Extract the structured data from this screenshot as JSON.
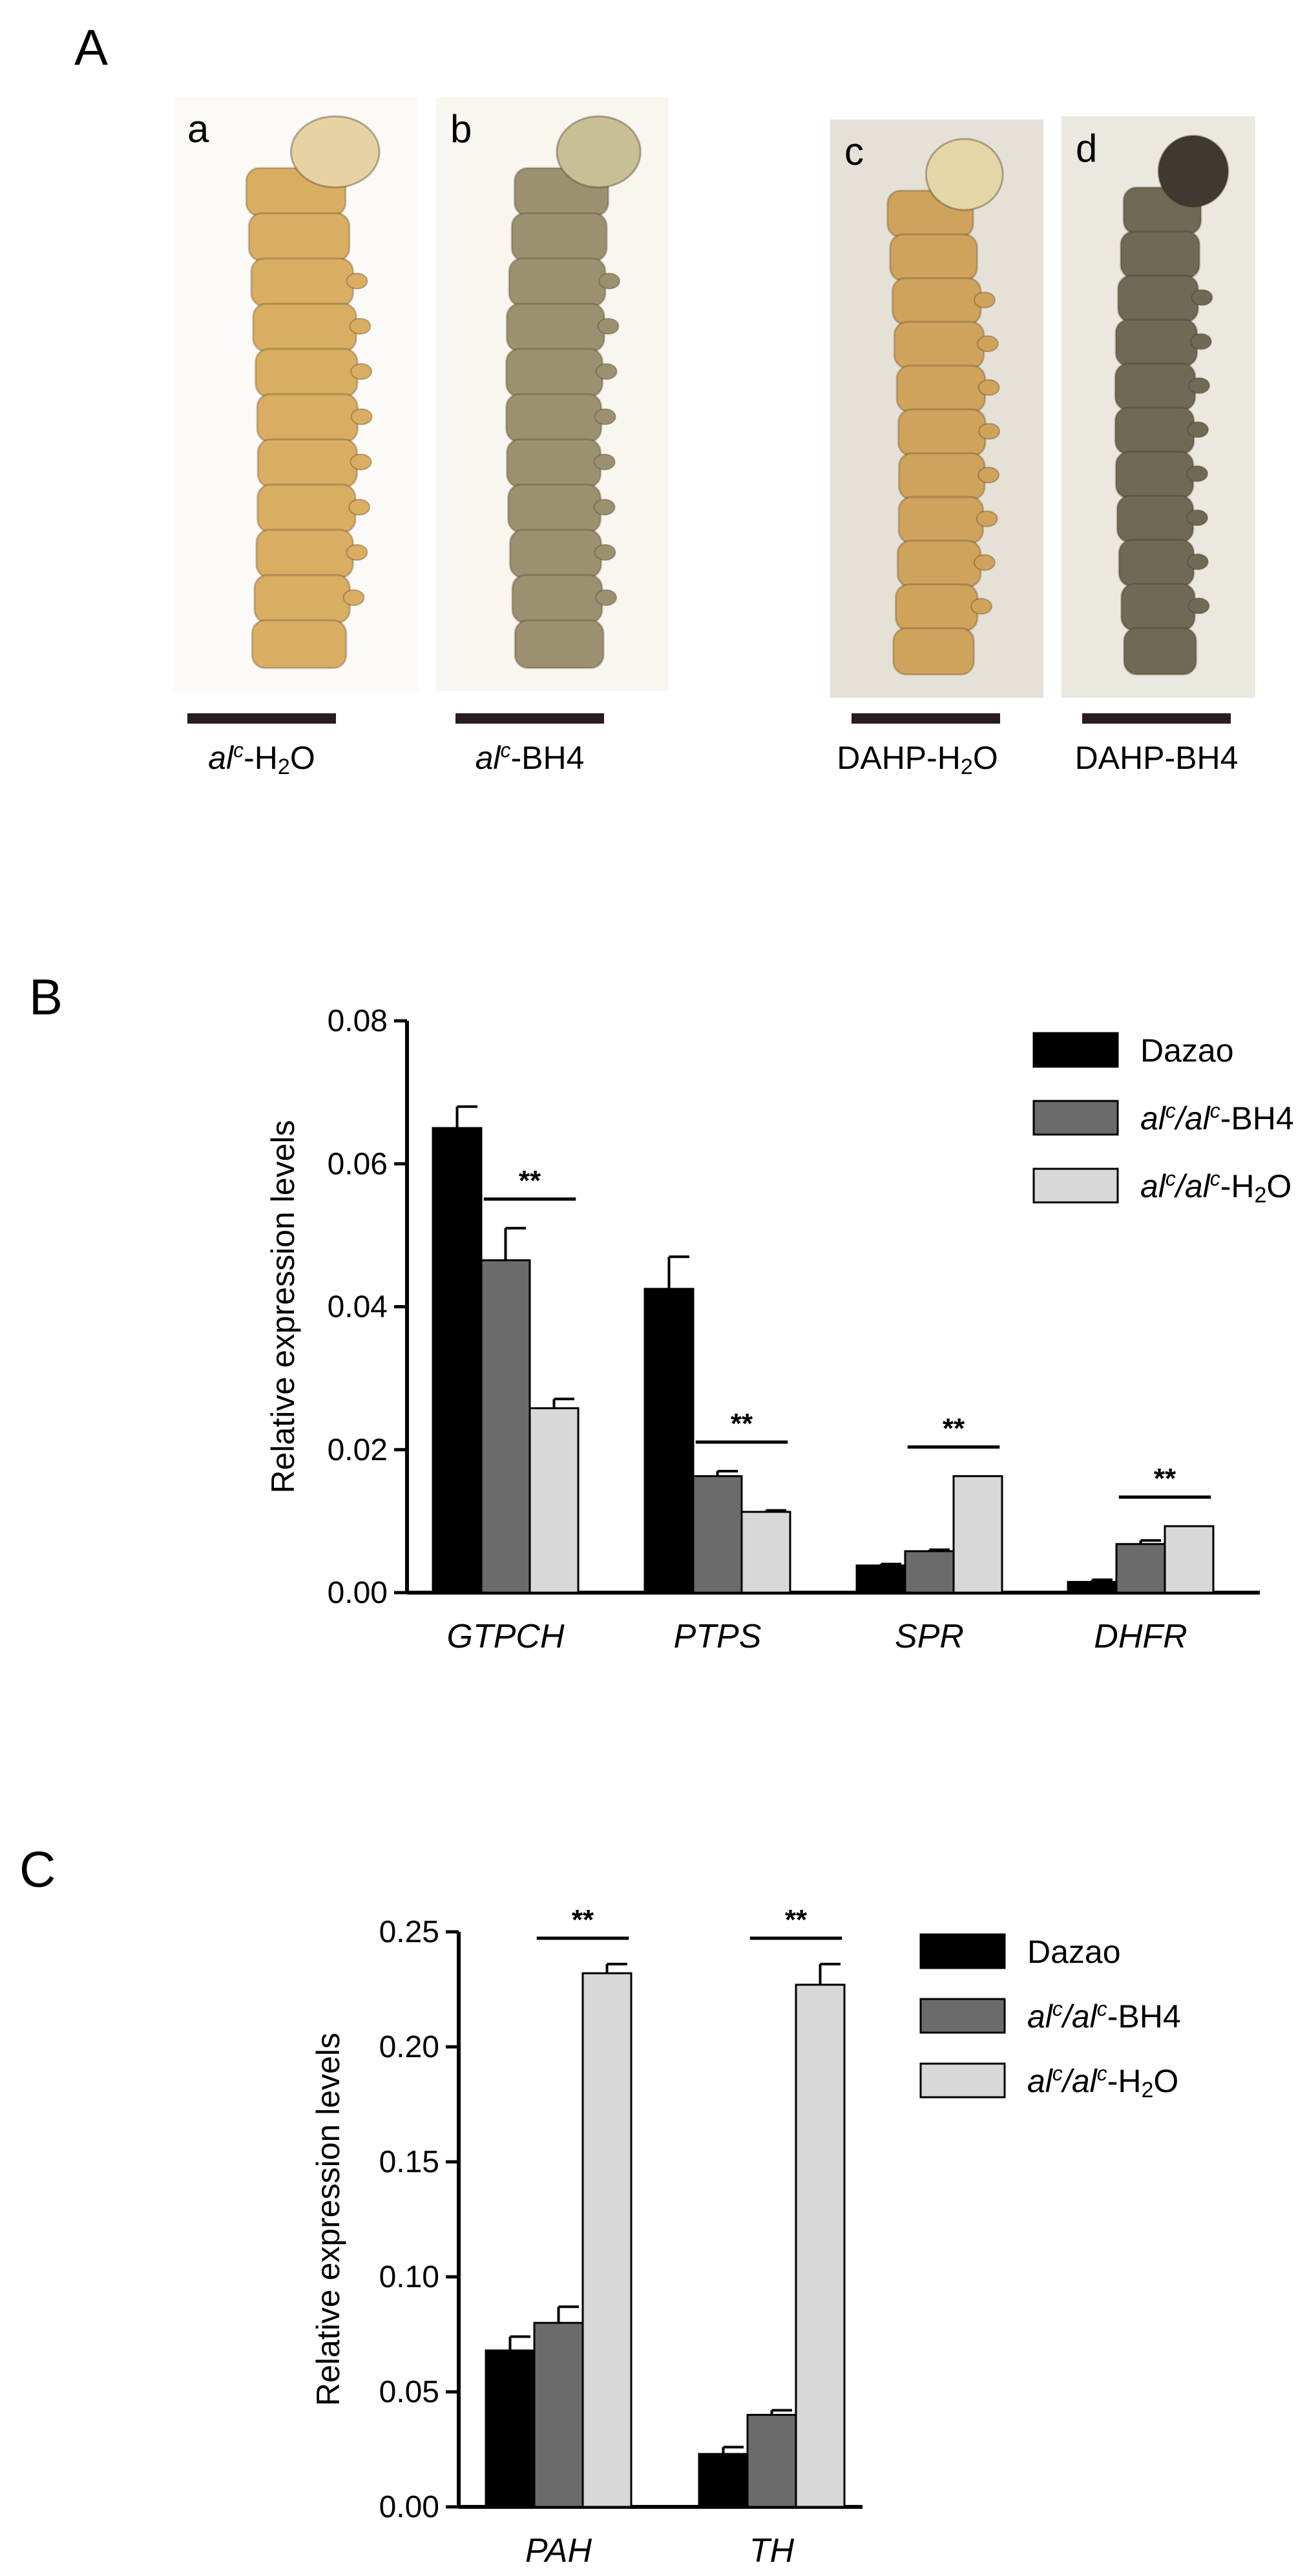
{
  "panel_a": {
    "letter": "A",
    "larvae": [
      {
        "label": "a",
        "caption_prefix": "al",
        "caption_sup": "c",
        "caption_suffix": "-H",
        "caption_sub": "2",
        "caption_end": "O",
        "body_color": "#d9ae62",
        "head_color": "#e6d2a2",
        "bg": "#fbfaf6"
      },
      {
        "label": "b",
        "caption_prefix": "al",
        "caption_sup": "c",
        "caption_suffix": "-BH4",
        "caption_sub": "",
        "caption_end": "",
        "body_color": "#9b9170",
        "head_color": "#c9bf95",
        "bg": "#f8f6ee"
      },
      {
        "label": "c",
        "caption_prefix": "DAHP-H",
        "caption_sup": "",
        "caption_suffix": "",
        "caption_sub": "2",
        "caption_end": "O",
        "body_color": "#cfa35b",
        "head_color": "#e5d6a8",
        "bg": "#e6e1d6"
      },
      {
        "label": "d",
        "caption_prefix": "DAHP-BH4",
        "caption_sup": "",
        "caption_suffix": "",
        "caption_sub": "",
        "caption_end": "",
        "body_color": "#6e6a55",
        "head_color": "#3e3a30",
        "bg": "#ebe8e0"
      }
    ]
  },
  "colors": {
    "dazao": "#000000",
    "bh4": "#6b6b6b",
    "h2o": "#d8d8d8",
    "scale_bar": "#2a1c1c"
  },
  "chart_data": [
    {
      "panel": "B",
      "type": "bar",
      "ylabel": "Relative expression levels",
      "ylim": [
        0,
        0.08
      ],
      "yticks": [
        "0.00",
        "0.02",
        "0.04",
        "0.06",
        "0.08"
      ],
      "categories": [
        "GTPCH",
        "PTPS",
        "SPR",
        "DHFR"
      ],
      "legend": [
        {
          "name": "Dazao",
          "prefix": "Dazao",
          "sup1": "",
          "mid": "",
          "sup2": "",
          "suffix": "",
          "sub": "",
          "end": ""
        },
        {
          "name": "alc/alc-BH4",
          "prefix": "al",
          "sup1": "c",
          "mid": "/al",
          "sup2": "c",
          "suffix": "-BH4",
          "sub": "",
          "end": ""
        },
        {
          "name": "alc/alc-H2O",
          "prefix": "al",
          "sup1": "c",
          "mid": "/al",
          "sup2": "c",
          "suffix": "-H",
          "sub": "2",
          "end": "O"
        }
      ],
      "series": [
        {
          "name": "Dazao",
          "values": [
            0.065,
            0.0425,
            0.0038,
            0.0015
          ],
          "errors": [
            0.003,
            0.0045,
            0.0002,
            0.0003
          ]
        },
        {
          "name": "alc/alc-BH4",
          "values": [
            0.0465,
            0.0163,
            0.0058,
            0.0068
          ],
          "errors": [
            0.0045,
            0.0007,
            0.0002,
            0.0005
          ]
        },
        {
          "name": "alc/alc-H2O",
          "values": [
            0.0258,
            0.0113,
            0.0163,
            0.0093
          ],
          "errors": [
            0.0013,
            0.0002,
            0.0,
            0.0
          ]
        }
      ],
      "significance": [
        {
          "category": 0,
          "label": "**"
        },
        {
          "category": 1,
          "label": "**"
        },
        {
          "category": 2,
          "label": "**"
        },
        {
          "category": 3,
          "label": "**"
        }
      ]
    },
    {
      "panel": "C",
      "type": "bar",
      "ylabel": "Relative expression levels",
      "ylim": [
        0,
        0.25
      ],
      "yticks": [
        "0.00",
        "0.05",
        "0.10",
        "0.15",
        "0.20",
        "0.25"
      ],
      "categories": [
        "PAH",
        "TH"
      ],
      "legend": [
        {
          "name": "Dazao",
          "prefix": "Dazao",
          "sup1": "",
          "mid": "",
          "sup2": "",
          "suffix": "",
          "sub": "",
          "end": ""
        },
        {
          "name": "alc/alc-BH4",
          "prefix": "al",
          "sup1": "c",
          "mid": "/al",
          "sup2": "c",
          "suffix": "-BH4",
          "sub": "",
          "end": ""
        },
        {
          "name": "alc/alc-H2O",
          "prefix": "al",
          "sup1": "c",
          "mid": "/al",
          "sup2": "c",
          "suffix": "-H",
          "sub": "2",
          "end": "O"
        }
      ],
      "series": [
        {
          "name": "Dazao",
          "values": [
            0.068,
            0.023
          ],
          "errors": [
            0.006,
            0.003
          ]
        },
        {
          "name": "alc/alc-BH4",
          "values": [
            0.08,
            0.04
          ],
          "errors": [
            0.007,
            0.002
          ]
        },
        {
          "name": "alc/alc-H2O",
          "values": [
            0.232,
            0.227
          ],
          "errors": [
            0.004,
            0.009
          ]
        }
      ],
      "significance": [
        {
          "category": 0,
          "label": "**"
        },
        {
          "category": 1,
          "label": "**"
        }
      ]
    }
  ]
}
